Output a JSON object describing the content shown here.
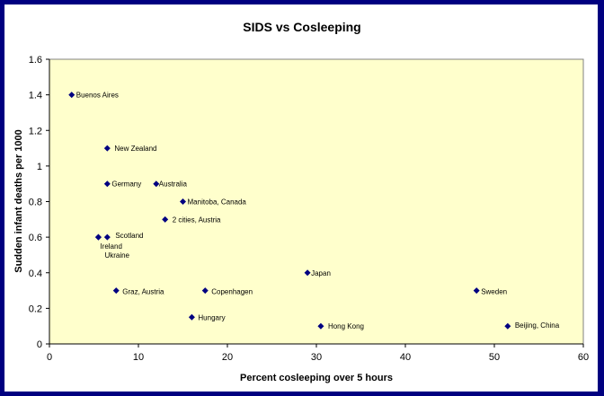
{
  "chart_data": {
    "type": "scatter",
    "title": "SIDS vs Cosleeping",
    "xlabel": "Percent cosleeping over 5 hours",
    "ylabel": "Sudden infant deaths per 1000",
    "xlim": [
      0,
      60
    ],
    "ylim": [
      0,
      1.6
    ],
    "xticks": [
      0,
      10,
      20,
      30,
      40,
      50,
      60
    ],
    "yticks": [
      0,
      0.2,
      0.4,
      0.6,
      0.8,
      1,
      1.2,
      1.4,
      1.6
    ],
    "grid": false,
    "legend": "none",
    "colors": {
      "marker": "#000080",
      "plot_bg": "#FFFFCC",
      "border": "#000080"
    },
    "points": [
      {
        "label": "Buenos Aires",
        "x": 2.5,
        "y": 1.4
      },
      {
        "label": "New Zealand",
        "x": 6.5,
        "y": 1.1
      },
      {
        "label": "Germany",
        "x": 6.5,
        "y": 0.9
      },
      {
        "label": "Australia",
        "x": 12,
        "y": 0.9
      },
      {
        "label": "Manitoba, Canada",
        "x": 15,
        "y": 0.8
      },
      {
        "label": "2 cities, Austria",
        "x": 13,
        "y": 0.7
      },
      {
        "label": "Scotland",
        "x": 6.5,
        "y": 0.6
      },
      {
        "label": "Ireland",
        "x": 5.5,
        "y": 0.6
      },
      {
        "label": "Ukraine",
        "x": 5.5,
        "y": 0.6
      },
      {
        "label": "Graz, Austria",
        "x": 7.5,
        "y": 0.3
      },
      {
        "label": "Copenhagen",
        "x": 17.5,
        "y": 0.3
      },
      {
        "label": "Hungary",
        "x": 16,
        "y": 0.15
      },
      {
        "label": "Japan",
        "x": 29,
        "y": 0.4
      },
      {
        "label": "Hong Kong",
        "x": 30.5,
        "y": 0.1
      },
      {
        "label": "Sweden",
        "x": 48,
        "y": 0.3
      },
      {
        "label": "Beijing, China",
        "x": 51.5,
        "y": 0.1
      }
    ]
  }
}
